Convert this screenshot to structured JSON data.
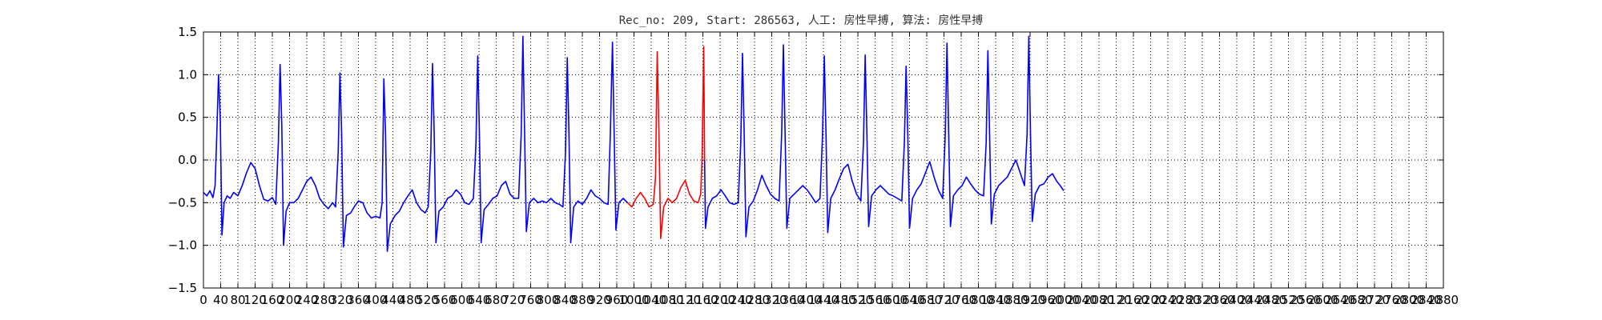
{
  "chart_data": {
    "type": "line",
    "title": "Rec_no: 209, Start: 286563, 人工: 房性早搏, 算法: 房性早搏",
    "xlabel": "",
    "ylabel": "",
    "xlim": [
      0,
      2880
    ],
    "ylim": [
      -1.5,
      1.5
    ],
    "grid": true,
    "grid_style": "dotted",
    "yticks": [
      -1.5,
      -1.0,
      -0.5,
      0.0,
      0.5,
      1.0,
      1.5
    ],
    "ytick_labels": [
      "−1.5",
      "−1.0",
      "−0.5",
      "0.0",
      "0.5",
      "1.0",
      "1.5"
    ],
    "xticks": [
      0,
      40,
      80,
      120,
      160,
      200,
      240,
      280,
      320,
      360,
      400,
      440,
      480,
      520,
      560,
      600,
      640,
      680,
      720,
      760,
      800,
      840,
      880,
      920,
      960,
      1000,
      1040,
      1080,
      1120,
      1160,
      1200,
      1240,
      1280,
      1320,
      1360,
      1400,
      1440,
      1480,
      1520,
      1560,
      1600,
      1640,
      1680,
      1720,
      1760,
      1800,
      1840,
      1880,
      1920,
      1960,
      2000,
      2040,
      2080,
      2120,
      2160,
      2200,
      2240,
      2280,
      2320,
      2360,
      2400,
      2440,
      2480,
      2520,
      2560,
      2600,
      2640,
      2680,
      2720,
      2760,
      2800,
      2840,
      2880
    ],
    "xtick_labels": [
      "0",
      "40",
      "80",
      "120",
      "160",
      "200",
      "240",
      "280",
      "320",
      "360",
      "400",
      "440",
      "480",
      "520",
      "560",
      "600",
      "640",
      "680",
      "720",
      "760",
      "800",
      "840",
      "880",
      "920",
      "960",
      "1000",
      "1040",
      "1080",
      "1120",
      "1160",
      "1200",
      "1240",
      "1280",
      "1320",
      "1360",
      "1400",
      "1440",
      "1480",
      "1520",
      "1560",
      "1600",
      "1640",
      "1680",
      "1720",
      "1760",
      "1800",
      "1840",
      "1880",
      "1920",
      "1960",
      "2000",
      "2040",
      "2080",
      "2120",
      "2160",
      "2200",
      "2240",
      "2280",
      "2320",
      "2360",
      "2400",
      "2440",
      "2480",
      "2520",
      "2560",
      "2600",
      "2640",
      "2680",
      "2720",
      "2760",
      "2800",
      "2840",
      "2880"
    ],
    "series": [
      {
        "color": "#0000ff",
        "points": [
          [
            0,
            -0.38
          ],
          [
            8,
            -0.42
          ],
          [
            15,
            -0.36
          ],
          [
            22,
            -0.44
          ],
          [
            27,
            -0.3
          ],
          [
            31,
            0.3
          ],
          [
            35,
            1.0
          ],
          [
            39,
            0.5
          ],
          [
            43,
            -0.88
          ],
          [
            48,
            -0.5
          ],
          [
            55,
            -0.42
          ],
          [
            62,
            -0.45
          ],
          [
            70,
            -0.38
          ],
          [
            80,
            -0.42
          ],
          [
            90,
            -0.3
          ],
          [
            100,
            -0.15
          ],
          [
            110,
            -0.03
          ],
          [
            120,
            -0.1
          ],
          [
            130,
            -0.3
          ],
          [
            140,
            -0.46
          ],
          [
            150,
            -0.48
          ],
          [
            160,
            -0.44
          ],
          [
            168,
            -0.52
          ],
          [
            174,
            0.2
          ],
          [
            178,
            1.12
          ],
          [
            182,
            0.4
          ],
          [
            186,
            -1.0
          ],
          [
            192,
            -0.6
          ],
          [
            200,
            -0.5
          ],
          [
            210,
            -0.5
          ],
          [
            220,
            -0.45
          ],
          [
            230,
            -0.35
          ],
          [
            240,
            -0.25
          ],
          [
            250,
            -0.2
          ],
          [
            260,
            -0.3
          ],
          [
            270,
            -0.45
          ],
          [
            280,
            -0.52
          ],
          [
            290,
            -0.57
          ],
          [
            300,
            -0.5
          ],
          [
            307,
            -0.55
          ],
          [
            313,
            0.1
          ],
          [
            317,
            1.02
          ],
          [
            321,
            0.3
          ],
          [
            325,
            -1.02
          ],
          [
            332,
            -0.65
          ],
          [
            342,
            -0.62
          ],
          [
            350,
            -0.55
          ],
          [
            360,
            -0.48
          ],
          [
            370,
            -0.5
          ],
          [
            380,
            -0.62
          ],
          [
            390,
            -0.68
          ],
          [
            400,
            -0.66
          ],
          [
            410,
            -0.68
          ],
          [
            415,
            -0.5
          ],
          [
            419,
            0.95
          ],
          [
            423,
            0.3
          ],
          [
            427,
            -1.07
          ],
          [
            434,
            -0.75
          ],
          [
            445,
            -0.65
          ],
          [
            455,
            -0.6
          ],
          [
            465,
            -0.5
          ],
          [
            475,
            -0.42
          ],
          [
            485,
            -0.35
          ],
          [
            495,
            -0.5
          ],
          [
            505,
            -0.58
          ],
          [
            515,
            -0.62
          ],
          [
            522,
            -0.55
          ],
          [
            528,
            0.1
          ],
          [
            532,
            1.13
          ],
          [
            536,
            0.3
          ],
          [
            540,
            -0.97
          ],
          [
            547,
            -0.6
          ],
          [
            557,
            -0.55
          ],
          [
            567,
            -0.45
          ],
          [
            577,
            -0.42
          ],
          [
            587,
            -0.35
          ],
          [
            597,
            -0.4
          ],
          [
            607,
            -0.5
          ],
          [
            617,
            -0.52
          ],
          [
            627,
            -0.45
          ],
          [
            633,
            0.2
          ],
          [
            637,
            1.22
          ],
          [
            641,
            0.3
          ],
          [
            645,
            -0.97
          ],
          [
            652,
            -0.58
          ],
          [
            662,
            -0.52
          ],
          [
            672,
            -0.45
          ],
          [
            682,
            -0.42
          ],
          [
            692,
            -0.3
          ],
          [
            702,
            -0.25
          ],
          [
            712,
            -0.4
          ],
          [
            722,
            -0.45
          ],
          [
            732,
            -0.45
          ],
          [
            738,
            0.3
          ],
          [
            742,
            1.45
          ],
          [
            746,
            0.3
          ],
          [
            750,
            -0.84
          ],
          [
            757,
            -0.5
          ],
          [
            767,
            -0.45
          ],
          [
            777,
            -0.5
          ],
          [
            787,
            -0.48
          ],
          [
            797,
            -0.5
          ],
          [
            807,
            -0.45
          ],
          [
            817,
            -0.5
          ],
          [
            827,
            -0.52
          ],
          [
            835,
            -0.55
          ],
          [
            841,
            0.1
          ],
          [
            845,
            1.2
          ],
          [
            849,
            0.3
          ],
          [
            853,
            -0.97
          ],
          [
            860,
            -0.55
          ],
          [
            870,
            -0.48
          ],
          [
            880,
            -0.52
          ],
          [
            890,
            -0.45
          ],
          [
            900,
            -0.35
          ],
          [
            910,
            -0.42
          ],
          [
            920,
            -0.45
          ],
          [
            930,
            -0.5
          ],
          [
            940,
            -0.52
          ],
          [
            945,
            0.3
          ],
          [
            950,
            1.38
          ],
          [
            954,
            0.3
          ],
          [
            958,
            -0.82
          ],
          [
            965,
            -0.5
          ],
          [
            975,
            -0.45
          ],
          [
            985,
            -0.5
          ]
        ]
      },
      {
        "color": "#ff0000",
        "points": [
          [
            985,
            -0.5
          ],
          [
            995,
            -0.55
          ],
          [
            1005,
            -0.45
          ],
          [
            1015,
            -0.38
          ],
          [
            1025,
            -0.45
          ],
          [
            1035,
            -0.55
          ],
          [
            1045,
            -0.52
          ],
          [
            1050,
            -0.2
          ],
          [
            1054,
            1.27
          ],
          [
            1058,
            0.3
          ],
          [
            1062,
            -0.92
          ],
          [
            1069,
            -0.55
          ],
          [
            1079,
            -0.45
          ],
          [
            1089,
            -0.5
          ],
          [
            1099,
            -0.45
          ],
          [
            1109,
            -0.32
          ],
          [
            1119,
            -0.24
          ],
          [
            1129,
            -0.4
          ],
          [
            1139,
            -0.48
          ],
          [
            1149,
            -0.5
          ],
          [
            1155,
            -0.4
          ],
          [
            1158,
            0.0
          ],
          [
            1162,
            1.33
          ],
          [
            1164,
            0.0
          ]
        ]
      },
      {
        "color": "#0000ff",
        "points": [
          [
            1164,
            0.0
          ],
          [
            1166,
            -0.8
          ],
          [
            1172,
            -0.55
          ],
          [
            1182,
            -0.45
          ],
          [
            1192,
            -0.42
          ],
          [
            1202,
            -0.35
          ],
          [
            1212,
            -0.42
          ],
          [
            1222,
            -0.5
          ],
          [
            1232,
            -0.52
          ],
          [
            1242,
            -0.5
          ],
          [
            1248,
            0.2
          ],
          [
            1252,
            1.25
          ],
          [
            1256,
            0.3
          ],
          [
            1260,
            -0.9
          ],
          [
            1267,
            -0.55
          ],
          [
            1277,
            -0.48
          ],
          [
            1287,
            -0.35
          ],
          [
            1297,
            -0.18
          ],
          [
            1307,
            -0.3
          ],
          [
            1317,
            -0.4
          ],
          [
            1327,
            -0.45
          ],
          [
            1337,
            -0.48
          ],
          [
            1343,
            0.3
          ],
          [
            1347,
            1.35
          ],
          [
            1351,
            0.3
          ],
          [
            1355,
            -0.8
          ],
          [
            1362,
            -0.45
          ],
          [
            1372,
            -0.4
          ],
          [
            1382,
            -0.35
          ],
          [
            1392,
            -0.3
          ],
          [
            1402,
            -0.35
          ],
          [
            1412,
            -0.42
          ],
          [
            1422,
            -0.5
          ],
          [
            1432,
            -0.45
          ],
          [
            1438,
            0.3
          ],
          [
            1442,
            1.22
          ],
          [
            1446,
            0.3
          ],
          [
            1450,
            -0.85
          ],
          [
            1457,
            -0.45
          ],
          [
            1467,
            -0.35
          ],
          [
            1477,
            -0.22
          ],
          [
            1487,
            -0.1
          ],
          [
            1497,
            -0.05
          ],
          [
            1507,
            -0.25
          ],
          [
            1517,
            -0.4
          ],
          [
            1527,
            -0.48
          ],
          [
            1533,
            0.2
          ],
          [
            1537,
            1.23
          ],
          [
            1541,
            0.3
          ],
          [
            1545,
            -0.78
          ],
          [
            1552,
            -0.42
          ],
          [
            1562,
            -0.35
          ],
          [
            1572,
            -0.3
          ],
          [
            1582,
            -0.35
          ],
          [
            1592,
            -0.4
          ],
          [
            1602,
            -0.42
          ],
          [
            1612,
            -0.45
          ],
          [
            1622,
            -0.48
          ],
          [
            1628,
            0.2
          ],
          [
            1632,
            1.1
          ],
          [
            1636,
            0.3
          ],
          [
            1640,
            -0.8
          ],
          [
            1647,
            -0.45
          ],
          [
            1657,
            -0.35
          ],
          [
            1667,
            -0.28
          ],
          [
            1677,
            -0.15
          ],
          [
            1687,
            -0.02
          ],
          [
            1697,
            -0.2
          ],
          [
            1707,
            -0.35
          ],
          [
            1717,
            -0.45
          ],
          [
            1723,
            0.3
          ],
          [
            1727,
            1.37
          ],
          [
            1731,
            0.3
          ],
          [
            1735,
            -0.78
          ],
          [
            1742,
            -0.42
          ],
          [
            1752,
            -0.35
          ],
          [
            1762,
            -0.3
          ],
          [
            1772,
            -0.2
          ],
          [
            1782,
            -0.28
          ],
          [
            1792,
            -0.35
          ],
          [
            1802,
            -0.4
          ],
          [
            1812,
            -0.42
          ],
          [
            1818,
            0.2
          ],
          [
            1822,
            1.28
          ],
          [
            1826,
            0.3
          ],
          [
            1830,
            -0.75
          ],
          [
            1837,
            -0.4
          ],
          [
            1847,
            -0.3
          ],
          [
            1857,
            -0.25
          ],
          [
            1867,
            -0.2
          ],
          [
            1877,
            -0.1
          ],
          [
            1887,
            0.0
          ],
          [
            1897,
            -0.15
          ],
          [
            1907,
            -0.3
          ],
          [
            1913,
            0.3
          ],
          [
            1917,
            1.45
          ],
          [
            1921,
            0.3
          ],
          [
            1925,
            -0.72
          ],
          [
            1932,
            -0.4
          ],
          [
            1942,
            -0.3
          ],
          [
            1952,
            -0.28
          ],
          [
            1962,
            -0.2
          ],
          [
            1972,
            -0.16
          ],
          [
            1982,
            -0.25
          ],
          [
            1990,
            -0.3
          ],
          [
            1998,
            -0.36
          ]
        ]
      }
    ]
  }
}
